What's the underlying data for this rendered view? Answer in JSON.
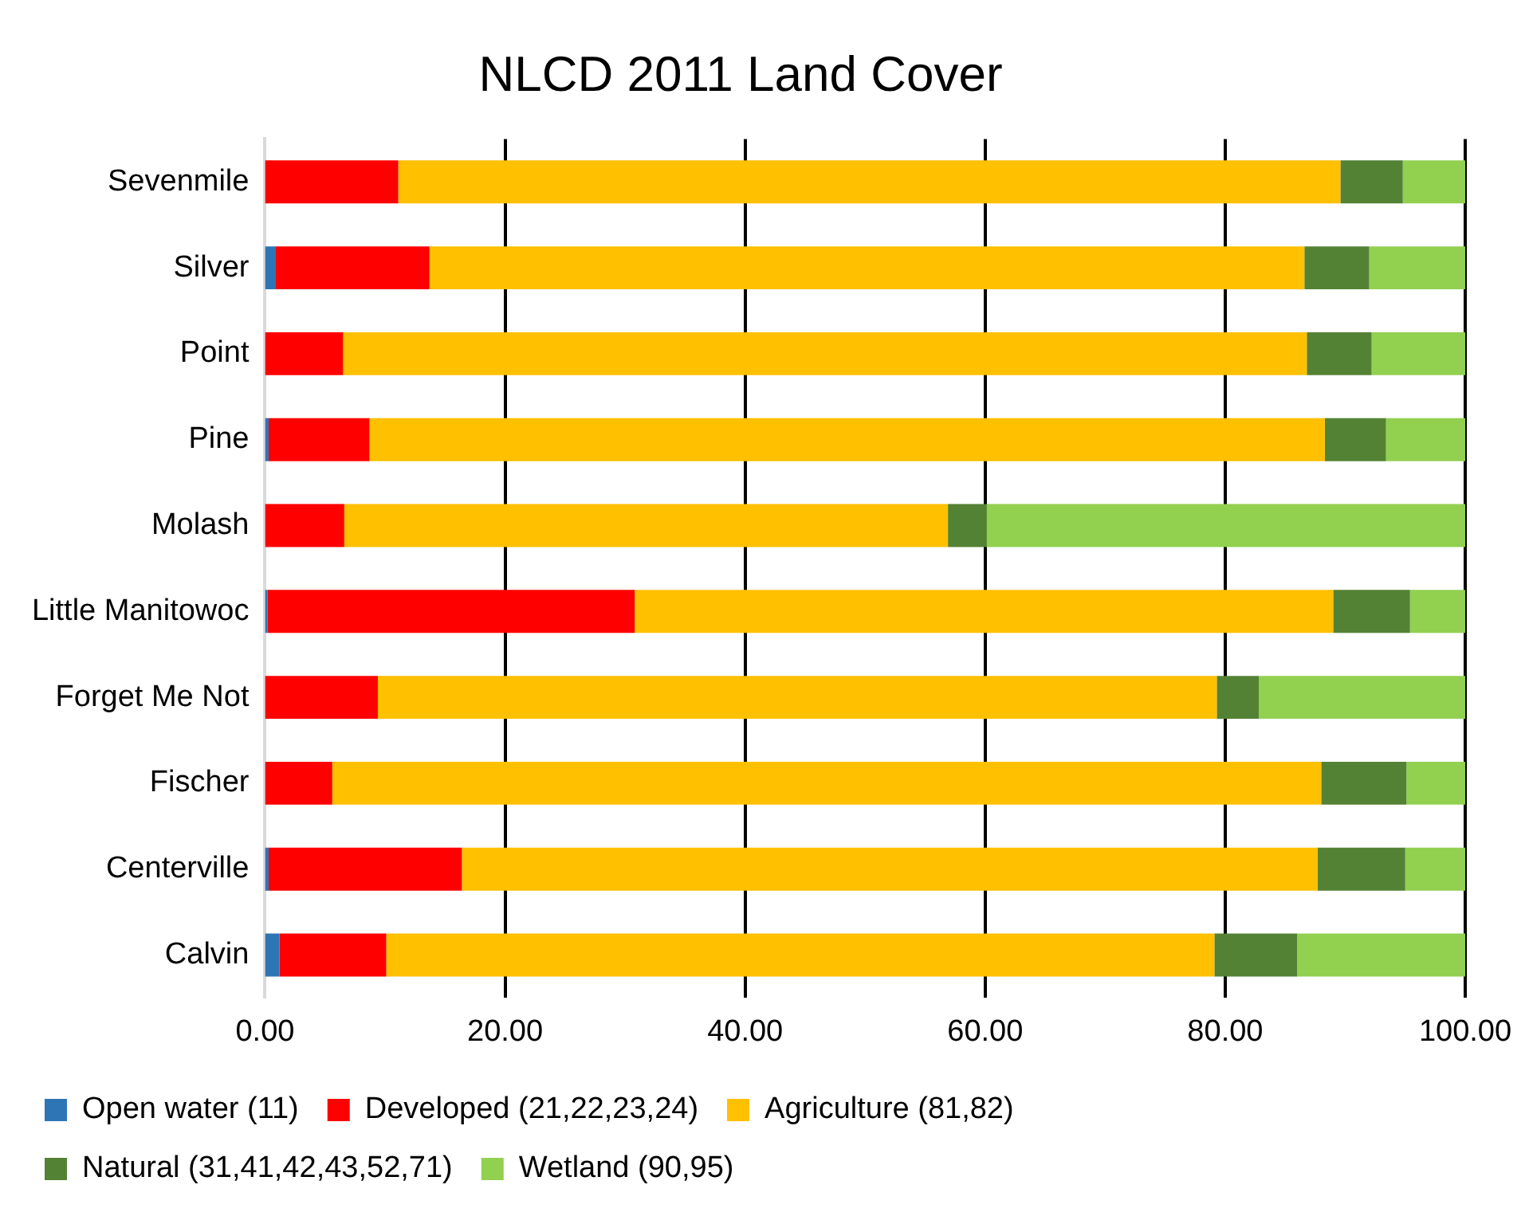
{
  "chart_data": {
    "type": "bar",
    "orientation": "horizontal",
    "stacked": true,
    "title": "NLCD 2011 Land Cover",
    "categories": [
      "Sevenmile",
      "Silver",
      "Point",
      "Pine",
      "Molash",
      "Little Manitowoc",
      "Forget Me Not",
      "Fischer",
      "Centerville",
      "Calvin"
    ],
    "series": [
      {
        "name": "Open water (11)",
        "color": "#2e75b6",
        "values": [
          0,
          0.9,
          0,
          0.3,
          0,
          0.2,
          0,
          0,
          0.3,
          1.2
        ]
      },
      {
        "name": "Developed (21,22,23,24)",
        "color": "#ff0000",
        "values": [
          11.1,
          12.8,
          6.5,
          8.4,
          6.6,
          30.6,
          9.4,
          5.6,
          16.1,
          8.9
        ]
      },
      {
        "name": "Agriculture (81,82)",
        "color": "#ffc000",
        "values": [
          78.5,
          72.9,
          80.3,
          79.6,
          50.3,
          58.2,
          69.9,
          82.4,
          71.3,
          69.0
        ]
      },
      {
        "name": "Natural (31,41,42,43,52,71)",
        "color": "#548235",
        "values": [
          5.2,
          5.4,
          5.4,
          5.1,
          3.2,
          6.4,
          3.5,
          7.1,
          7.3,
          6.9
        ]
      },
      {
        "name": "Wetland (90,95)",
        "color": "#92d050",
        "values": [
          5.2,
          8.0,
          7.8,
          6.6,
          39.9,
          4.6,
          17.2,
          4.9,
          5.0,
          14.0
        ]
      }
    ],
    "xlim": [
      0,
      100
    ],
    "xticks": [
      {
        "value": 0,
        "label": "0.00"
      },
      {
        "value": 20,
        "label": "20.00"
      },
      {
        "value": 40,
        "label": "40.00"
      },
      {
        "value": 60,
        "label": "60.00"
      },
      {
        "value": 80,
        "label": "80.00"
      },
      {
        "value": 100,
        "label": "100.00"
      }
    ],
    "grid": "x",
    "legend": "bottom"
  }
}
